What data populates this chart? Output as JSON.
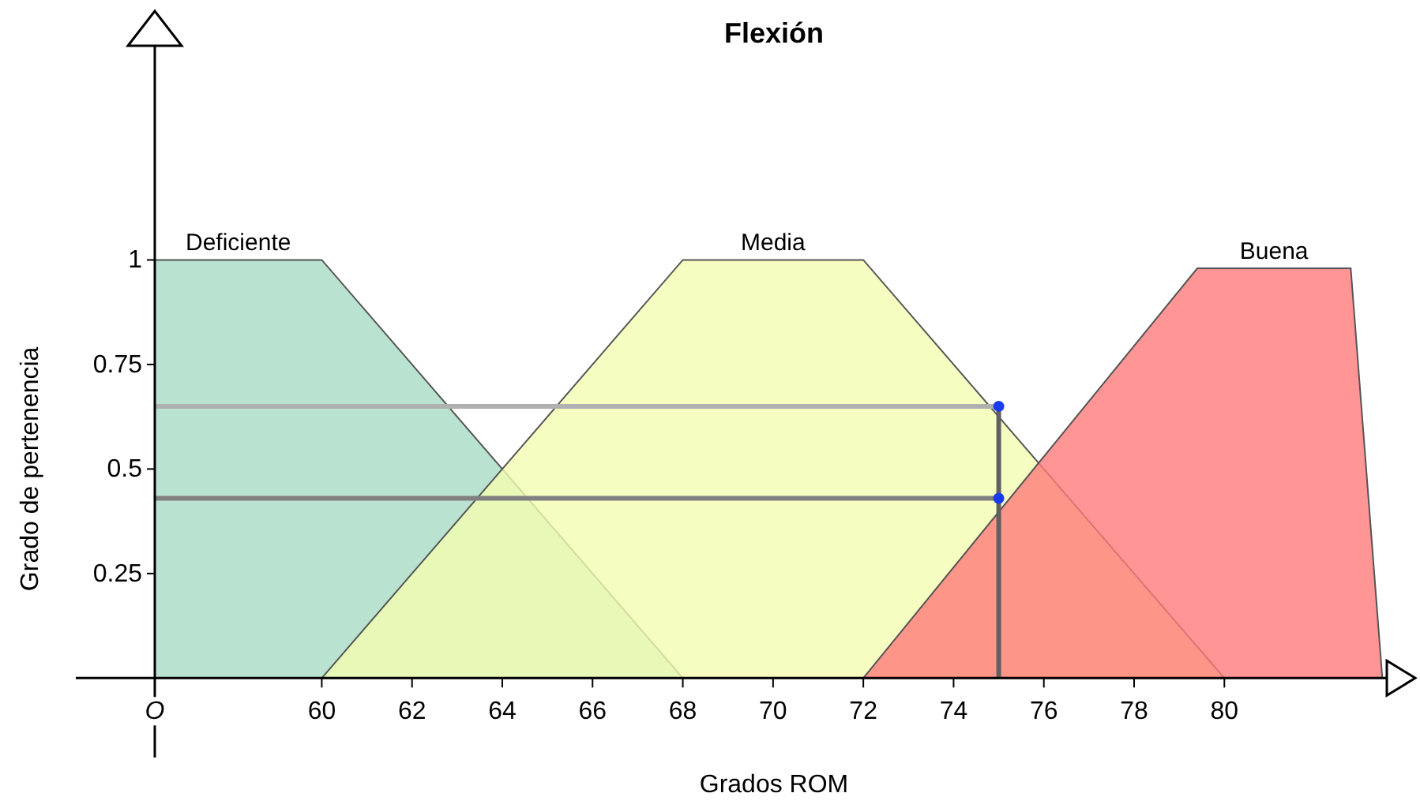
{
  "chart_data": {
    "type": "area",
    "title": "Flexión",
    "xlabel": "Grados ROM",
    "ylabel": "Grado de pertenencia",
    "xlim": [
      56.3,
      83.6
    ],
    "ylim": [
      -0.19,
      1.55
    ],
    "xticks": [
      {
        "value": 56.3,
        "label": "O"
      },
      60,
      62,
      64,
      66,
      68,
      70,
      72,
      74,
      76,
      78,
      80
    ],
    "yticks": [
      0.25,
      0.5,
      0.75,
      1
    ],
    "series": [
      {
        "name": "Deficiente",
        "color": "#a8dcc4",
        "x": [
          56.3,
          56.3,
          60,
          68
        ],
        "values": [
          0,
          1,
          1,
          0
        ]
      },
      {
        "name": "Media",
        "color": "#f2fcb0",
        "x": [
          60,
          68,
          72,
          80
        ],
        "values": [
          0,
          1,
          1,
          0
        ]
      },
      {
        "name": "Buena",
        "color": "#ff7a7a",
        "x": [
          72,
          79.4,
          82.8,
          83.5
        ],
        "values": [
          0,
          0.98,
          0.98,
          0
        ]
      },
      {
        "type": "line",
        "color": "#b0b0b0",
        "x": [
          56.3,
          75
        ],
        "values": [
          0.65,
          0.65
        ]
      },
      {
        "type": "line",
        "color": "#808080",
        "x": [
          56.3,
          75
        ],
        "values": [
          0.43,
          0.43
        ]
      },
      {
        "type": "line",
        "color": "#606060",
        "x": [
          75,
          75
        ],
        "values": [
          0,
          0.65
        ]
      },
      {
        "type": "scatter",
        "color": "#1a3cf0",
        "marker": "circle",
        "x": [
          75,
          75
        ],
        "values": [
          0.65,
          0.43
        ]
      }
    ]
  }
}
